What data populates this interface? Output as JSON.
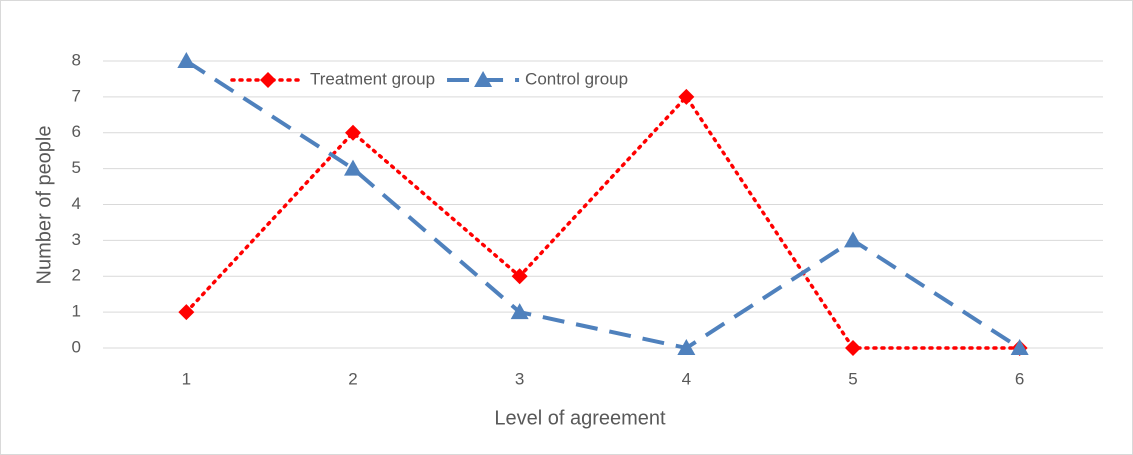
{
  "chart_data": {
    "type": "line",
    "x_label": "Level of agreement",
    "y_label": "Number of people",
    "categories": [
      "1",
      "2",
      "3",
      "4",
      "5",
      "6"
    ],
    "series": [
      {
        "name": "Treatment group",
        "color": "#ff0000",
        "marker": "diamond",
        "dash": "dotted",
        "values": [
          1,
          6,
          2,
          7,
          0,
          0
        ]
      },
      {
        "name": "Control group",
        "color": "#4f81bd",
        "marker": "triangle",
        "dash": "dashed",
        "values": [
          8,
          5,
          1,
          0,
          3,
          0
        ]
      }
    ],
    "ylim": [
      0,
      8
    ],
    "yticks": [
      0,
      1,
      2,
      3,
      4,
      5,
      6,
      7,
      8
    ],
    "grid": true,
    "legend": "top"
  }
}
